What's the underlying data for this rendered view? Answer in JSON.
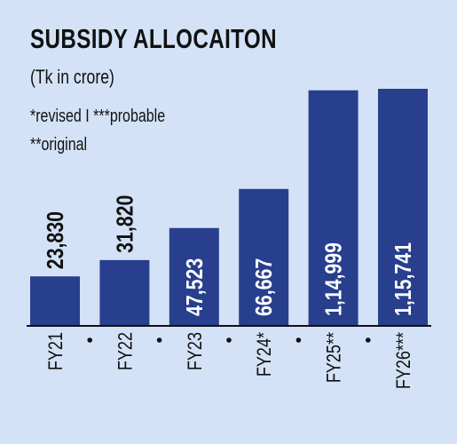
{
  "header": {
    "title": "SUBSIDY ALLOCAITON",
    "subtitle": "(Tk in crore)",
    "note_line1": "*revised I ***probable",
    "note_line2": "**original"
  },
  "colors": {
    "background": "#d3e2f6",
    "bar": "#283f8e",
    "label_outside": "#111111",
    "label_inside": "#ffffff"
  },
  "chart_data": {
    "type": "bar",
    "title": "SUBSIDY ALLOCAITON",
    "subtitle": "(Tk in crore)",
    "categories": [
      "FY21",
      "FY22",
      "FY23",
      "FY24*",
      "FY25**",
      "FY26***"
    ],
    "values": [
      23830,
      31820,
      47523,
      66667,
      114999,
      115741
    ],
    "value_labels": [
      "23,830",
      "31,820",
      "47,523",
      "66,667",
      "1,14,999",
      "1,15,741"
    ],
    "label_inside": [
      false,
      false,
      true,
      true,
      true,
      true
    ],
    "xlabel": "",
    "ylabel": "",
    "ylim": [
      0,
      115741
    ],
    "grid": false,
    "legend": "none"
  }
}
